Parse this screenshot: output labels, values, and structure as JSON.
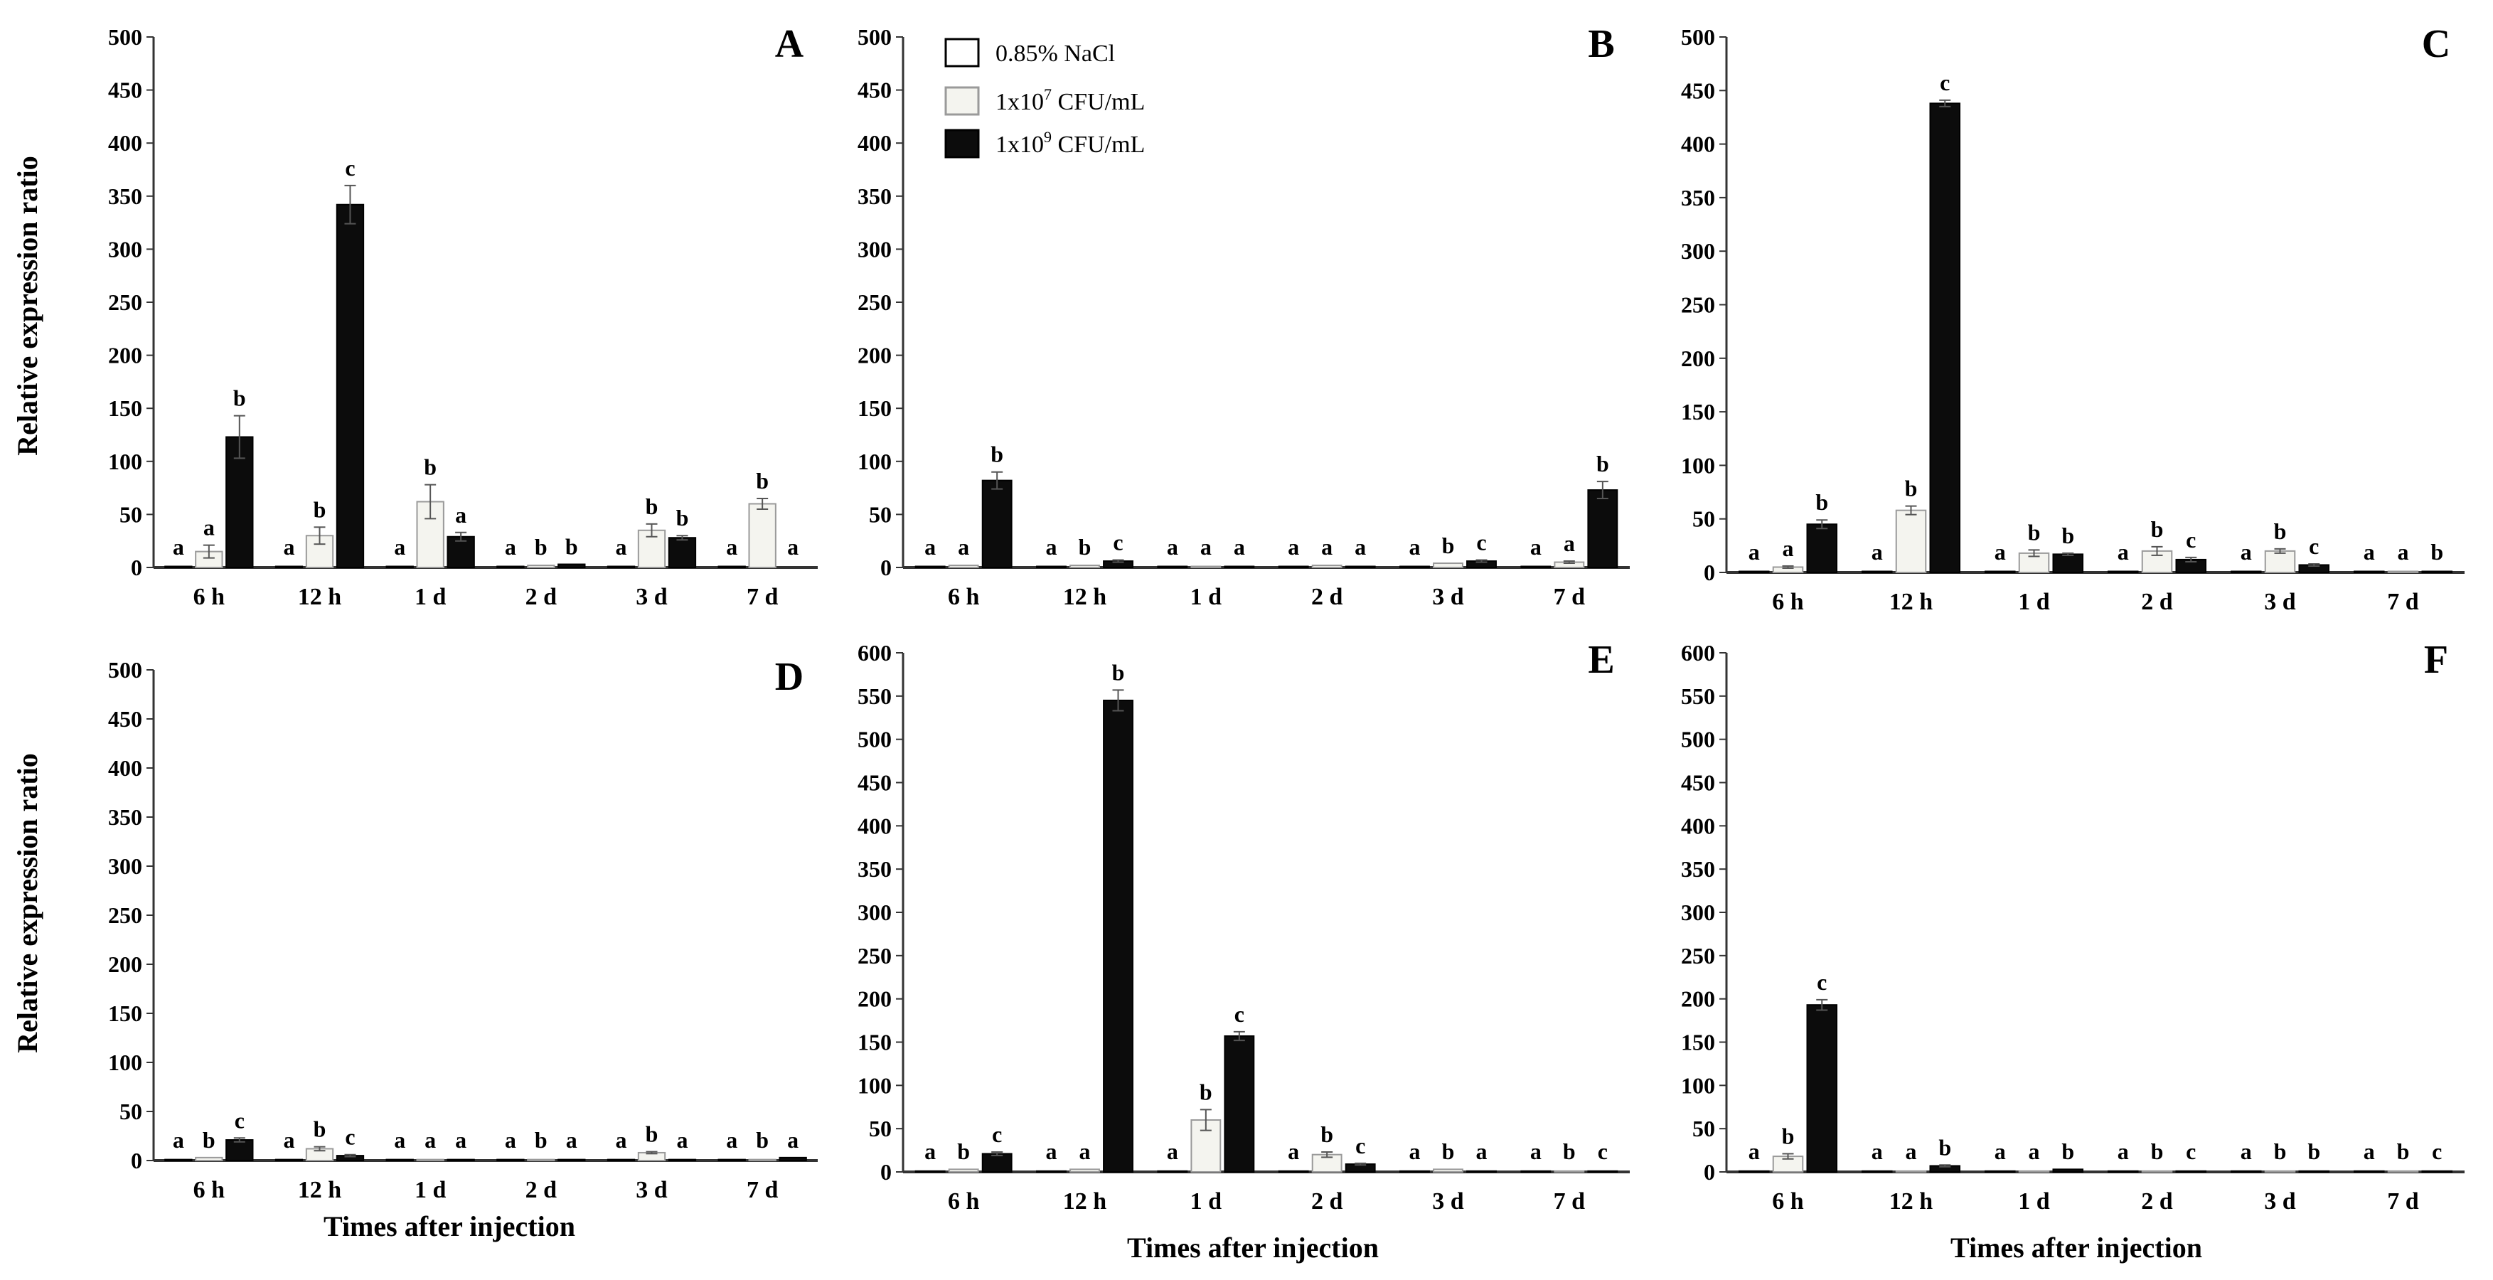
{
  "colors": {
    "nacl": "#ffffff",
    "low": "#f4f4ef",
    "high": "#0c0c0c",
    "nacl_stroke": "#000000",
    "low_stroke": "#9a9a9a",
    "high_stroke": "#000000",
    "axis": "#333333",
    "error_bar": "#555555"
  },
  "legend": {
    "items": [
      {
        "label_html": "0.85% NaCl",
        "base": "0.85% NaCl",
        "sup": "",
        "tail": "",
        "series": "nacl"
      },
      {
        "label_html": "1x10^7 CFU/mL",
        "base": "1x10",
        "sup": "7",
        "tail": " CFU/mL",
        "series": "low"
      },
      {
        "label_html": "1x10^9 CFU/mL",
        "base": "1x10",
        "sup": "9",
        "tail": " CFU/mL",
        "series": "high"
      }
    ]
  },
  "y_axis_title": "Relative expression ratio",
  "x_axis_title": "Times after injection",
  "chart_data": [
    {
      "type": "bar",
      "panel": "A",
      "categories": [
        "6 h",
        "12 h",
        "1 d",
        "2 d",
        "3 d",
        "7 d"
      ],
      "ylim": [
        0,
        500
      ],
      "yticks": [
        0,
        50,
        100,
        150,
        200,
        250,
        300,
        350,
        400,
        450,
        500
      ],
      "ylabel": "Relative expression ratio",
      "xlabel": "",
      "series": [
        {
          "name": "0.85% NaCl",
          "key": "nacl",
          "values": [
            1,
            1,
            1,
            1,
            1,
            1
          ],
          "errors": [
            0,
            0,
            0,
            0,
            0,
            0
          ],
          "letters": [
            "a",
            "a",
            "a",
            "a",
            "a",
            "a"
          ]
        },
        {
          "name": "1x10^7 CFU/mL",
          "key": "low",
          "values": [
            15,
            30,
            62,
            2,
            35,
            60
          ],
          "errors": [
            6,
            8,
            16,
            0,
            6,
            5
          ],
          "letters": [
            "a",
            "b",
            "b",
            "b",
            "b",
            "b"
          ]
        },
        {
          "name": "1x10^9 CFU/mL",
          "key": "high",
          "values": [
            123,
            342,
            29,
            3,
            28,
            0
          ],
          "errors": [
            20,
            18,
            4,
            0,
            2,
            0
          ],
          "letters": [
            "b",
            "c",
            "a",
            "b",
            "b",
            "a"
          ]
        }
      ]
    },
    {
      "type": "bar",
      "panel": "B",
      "categories": [
        "6 h",
        "12 h",
        "1 d",
        "2 d",
        "3 d",
        "7 d"
      ],
      "ylim": [
        0,
        500
      ],
      "yticks": [
        0,
        50,
        100,
        150,
        200,
        250,
        300,
        350,
        400,
        450,
        500
      ],
      "ylabel": "",
      "xlabel": "",
      "series": [
        {
          "name": "0.85% NaCl",
          "key": "nacl",
          "values": [
            1,
            1,
            1,
            1,
            1,
            1
          ],
          "errors": [
            0,
            0,
            0,
            0,
            0,
            0
          ],
          "letters": [
            "a",
            "a",
            "a",
            "a",
            "a",
            "a"
          ]
        },
        {
          "name": "1x10^7 CFU/mL",
          "key": "low",
          "values": [
            2,
            2,
            1,
            2,
            4,
            5
          ],
          "errors": [
            0,
            0,
            0,
            0,
            0,
            1
          ],
          "letters": [
            "a",
            "b",
            "a",
            "a",
            "b",
            "a"
          ]
        },
        {
          "name": "1x10^9 CFU/mL",
          "key": "high",
          "values": [
            82,
            6,
            1,
            1,
            6,
            73
          ],
          "errors": [
            8,
            1,
            0,
            0,
            1,
            8
          ],
          "letters": [
            "b",
            "c",
            "a",
            "a",
            "c",
            "b"
          ]
        }
      ]
    },
    {
      "type": "bar",
      "panel": "C",
      "categories": [
        "6 h",
        "12 h",
        "1 d",
        "2 d",
        "3 d",
        "7 d"
      ],
      "ylim": [
        0,
        500
      ],
      "yticks": [
        0,
        50,
        100,
        150,
        200,
        250,
        300,
        350,
        400,
        450,
        500
      ],
      "ylabel": "",
      "xlabel": "",
      "series": [
        {
          "name": "0.85% NaCl",
          "key": "nacl",
          "values": [
            1,
            1,
            1,
            1,
            1,
            1
          ],
          "errors": [
            0,
            0,
            0,
            0,
            0,
            0
          ],
          "letters": [
            "a",
            "a",
            "a",
            "a",
            "a",
            "a"
          ]
        },
        {
          "name": "1x10^7 CFU/mL",
          "key": "low",
          "values": [
            5,
            58,
            18,
            20,
            20,
            1
          ],
          "errors": [
            1,
            4,
            3,
            4,
            2,
            0
          ],
          "letters": [
            "a",
            "b",
            "b",
            "b",
            "b",
            "a"
          ]
        },
        {
          "name": "1x10^9 CFU/mL",
          "key": "high",
          "values": [
            45,
            438,
            17,
            12,
            7,
            1
          ],
          "errors": [
            4,
            3,
            1,
            2,
            1,
            0
          ],
          "letters": [
            "b",
            "c",
            "b",
            "c",
            "c",
            "b"
          ]
        }
      ]
    },
    {
      "type": "bar",
      "panel": "D",
      "categories": [
        "6 h",
        "12 h",
        "1 d",
        "2 d",
        "3 d",
        "7 d"
      ],
      "ylim": [
        0,
        500
      ],
      "yticks": [
        0,
        50,
        100,
        150,
        200,
        250,
        300,
        350,
        400,
        450,
        500
      ],
      "ylabel": "Relative expression ratio",
      "xlabel": "Times after injection",
      "series": [
        {
          "name": "0.85% NaCl",
          "key": "nacl",
          "values": [
            1,
            1,
            1,
            1,
            1,
            1
          ],
          "errors": [
            0,
            0,
            0,
            0,
            0,
            0
          ],
          "letters": [
            "a",
            "a",
            "a",
            "a",
            "a",
            "a"
          ]
        },
        {
          "name": "1x10^7 CFU/mL",
          "key": "low",
          "values": [
            3,
            12,
            1,
            1,
            8,
            1
          ],
          "errors": [
            0,
            2,
            0,
            0,
            1,
            0
          ],
          "letters": [
            "b",
            "b",
            "a",
            "b",
            "b",
            "b"
          ]
        },
        {
          "name": "1x10^9 CFU/mL",
          "key": "high",
          "values": [
            21,
            5,
            1,
            1,
            1,
            3
          ],
          "errors": [
            2,
            1,
            0,
            0,
            0,
            0
          ],
          "letters": [
            "c",
            "c",
            "a",
            "a",
            "a",
            "a"
          ]
        }
      ]
    },
    {
      "type": "bar",
      "panel": "E",
      "categories": [
        "6 h",
        "12 h",
        "1 d",
        "2 d",
        "3 d",
        "7 d"
      ],
      "ylim": [
        0,
        600
      ],
      "yticks": [
        0,
        50,
        100,
        150,
        200,
        250,
        300,
        350,
        400,
        450,
        500,
        550,
        600
      ],
      "ylabel": "",
      "xlabel": "Times after injection",
      "series": [
        {
          "name": "0.85% NaCl",
          "key": "nacl",
          "values": [
            1,
            1,
            1,
            1,
            1,
            1
          ],
          "errors": [
            0,
            0,
            0,
            0,
            0,
            0
          ],
          "letters": [
            "a",
            "a",
            "a",
            "a",
            "a",
            "a"
          ]
        },
        {
          "name": "1x10^7 CFU/mL",
          "key": "low",
          "values": [
            3,
            3,
            60,
            20,
            3,
            1
          ],
          "errors": [
            0,
            0,
            12,
            3,
            0,
            0
          ],
          "letters": [
            "b",
            "a",
            "b",
            "b",
            "b",
            "b"
          ]
        },
        {
          "name": "1x10^9 CFU/mL",
          "key": "high",
          "values": [
            21,
            545,
            157,
            9,
            1,
            1
          ],
          "errors": [
            2,
            12,
            5,
            1,
            0,
            0
          ],
          "letters": [
            "c",
            "b",
            "c",
            "c",
            "a",
            "c"
          ]
        }
      ]
    },
    {
      "type": "bar",
      "panel": "F",
      "categories": [
        "6 h",
        "12 h",
        "1 d",
        "2 d",
        "3 d",
        "7 d"
      ],
      "ylim": [
        0,
        600
      ],
      "yticks": [
        0,
        50,
        100,
        150,
        200,
        250,
        300,
        350,
        400,
        450,
        500,
        550,
        600
      ],
      "ylabel": "",
      "xlabel": "Times after injection",
      "series": [
        {
          "name": "0.85% NaCl",
          "key": "nacl",
          "values": [
            1,
            1,
            1,
            1,
            1,
            1
          ],
          "errors": [
            0,
            0,
            0,
            0,
            0,
            0
          ],
          "letters": [
            "a",
            "a",
            "a",
            "a",
            "a",
            "a"
          ]
        },
        {
          "name": "1x10^7 CFU/mL",
          "key": "low",
          "values": [
            18,
            1,
            1,
            1,
            1,
            1
          ],
          "errors": [
            3,
            0,
            0,
            0,
            0,
            0
          ],
          "letters": [
            "b",
            "a",
            "a",
            "b",
            "b",
            "b"
          ]
        },
        {
          "name": "1x10^9 CFU/mL",
          "key": "high",
          "values": [
            193,
            7,
            3,
            1,
            1,
            1
          ],
          "errors": [
            6,
            1,
            0,
            0,
            0,
            0
          ],
          "letters": [
            "c",
            "b",
            "b",
            "c",
            "b",
            "c"
          ]
        }
      ]
    }
  ]
}
